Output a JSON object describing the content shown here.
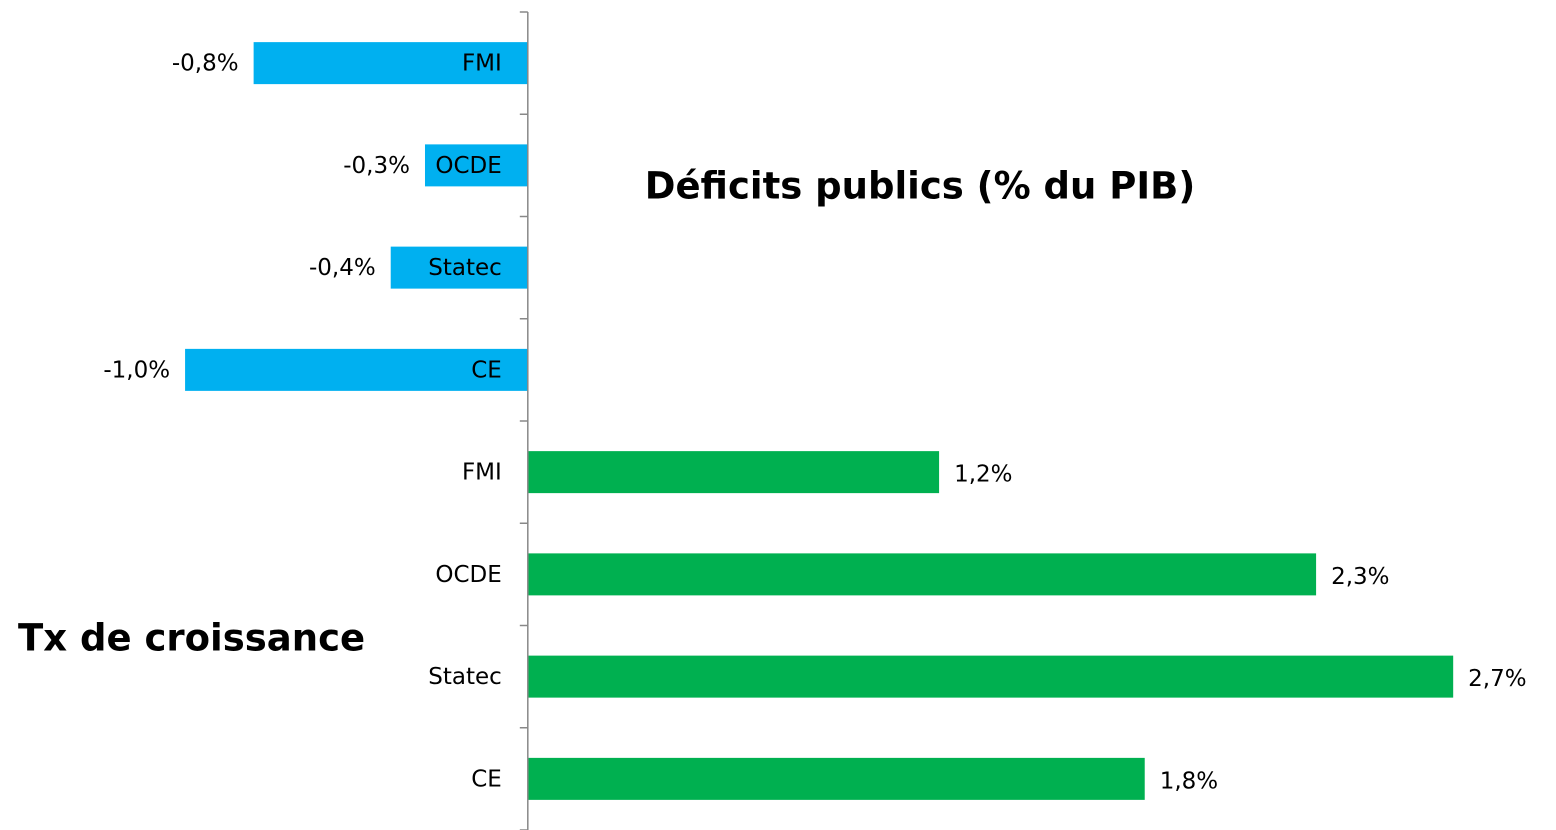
{
  "chart_data": {
    "type": "hbar",
    "annotations": [
      "Déficits publics (% du PIB)",
      "Tx de croissance"
    ],
    "categories": [
      "FMI",
      "OCDE",
      "Statec",
      "CE",
      "FMI",
      "OCDE",
      "Statec",
      "CE"
    ],
    "values": [
      -0.8,
      -0.3,
      -0.4,
      -1.0,
      1.2,
      2.3,
      2.7,
      1.8
    ],
    "value_labels": [
      "-0,8%",
      "-0,3%",
      "-0,4%",
      "-1,0%",
      "1,2%",
      "2,3%",
      "2,7%",
      "1,8%"
    ],
    "colors": [
      "#00b0f0",
      "#00b0f0",
      "#00b0f0",
      "#00b0f0",
      "#00b050",
      "#00b050",
      "#00b050",
      "#00b050"
    ],
    "xlim": [
      -1.54,
      3.0
    ]
  }
}
